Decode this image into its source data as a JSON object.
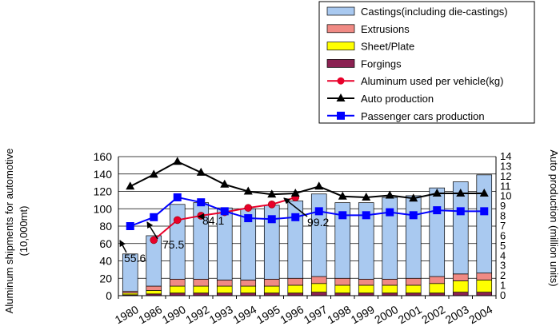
{
  "chart_data": {
    "type": "bar",
    "categories": [
      "1980",
      "1986",
      "1990",
      "1992",
      "1993",
      "1994",
      "1995",
      "1996",
      "1997",
      "1998",
      "1999",
      "2000",
      "2001",
      "2002",
      "2003",
      "2004"
    ],
    "stacked": true,
    "series": [
      {
        "name": "Castings(including die-castings)",
        "kind": "bar",
        "axis": "left",
        "color": "#a9c9f0",
        "values": [
          43,
          58,
          86,
          88,
          83,
          82,
          85,
          89,
          95,
          87,
          88,
          94,
          95,
          102,
          106,
          113
        ]
      },
      {
        "name": "Extrusions",
        "kind": "bar",
        "axis": "left",
        "color": "#f08a84",
        "values": [
          2,
          5,
          8,
          8,
          7,
          7,
          8,
          8,
          8,
          8,
          7,
          7,
          8,
          8,
          8,
          8
        ]
      },
      {
        "name": "Sheet/Plate",
        "kind": "bar",
        "axis": "left",
        "color": "#ffff00",
        "values": [
          2,
          4,
          8,
          8,
          8,
          8,
          8,
          9,
          10,
          9,
          9,
          9,
          9,
          11,
          13,
          14
        ]
      },
      {
        "name": "Forgings",
        "kind": "bar",
        "axis": "left",
        "color": "#8b2252",
        "values": [
          1,
          2,
          3,
          3,
          3,
          3,
          3,
          3,
          4,
          3,
          3,
          3,
          3,
          3,
          4,
          4
        ]
      },
      {
        "name": "Aluminum used per vehicle(kg)",
        "kind": "line",
        "axis": "left",
        "color": "#e8002a",
        "marker": "circle",
        "values": [
          null,
          64,
          87,
          92,
          96,
          101,
          105,
          113,
          null,
          null,
          null,
          null,
          null,
          null,
          null,
          null
        ]
      },
      {
        "name": "Auto production",
        "kind": "line",
        "axis": "right",
        "color": "#000000",
        "marker": "triangle",
        "values": [
          11.0,
          12.2,
          13.5,
          12.4,
          11.2,
          10.5,
          10.2,
          10.3,
          11.0,
          10.0,
          9.9,
          10.1,
          9.8,
          10.3,
          10.3,
          10.3
        ]
      },
      {
        "name": "Passenger cars production",
        "kind": "line",
        "axis": "right",
        "color": "#0000ff",
        "marker": "square",
        "values": [
          7.0,
          7.9,
          9.9,
          9.4,
          8.5,
          7.8,
          7.7,
          7.9,
          8.5,
          8.1,
          8.1,
          8.4,
          8.1,
          8.6,
          8.5,
          8.5
        ]
      }
    ],
    "annotations": [
      "55.6",
      "75.5",
      "84.1",
      "99.2"
    ],
    "ylabel": "Aluminum shipments for automotive\n(10,000mt)",
    "y2label": "Auto production (million units)",
    "ylim": [
      0,
      160
    ],
    "yticks": [
      "0",
      "20",
      "40",
      "60",
      "80",
      "100",
      "120",
      "140",
      "160"
    ],
    "y2lim": [
      0,
      14
    ],
    "y2ticks": [
      "0",
      "1",
      "2",
      "3",
      "4",
      "5",
      "6",
      "7",
      "8",
      "9",
      "10",
      "11",
      "12",
      "13",
      "14"
    ],
    "grid": true,
    "legend_placement": "top-right"
  }
}
